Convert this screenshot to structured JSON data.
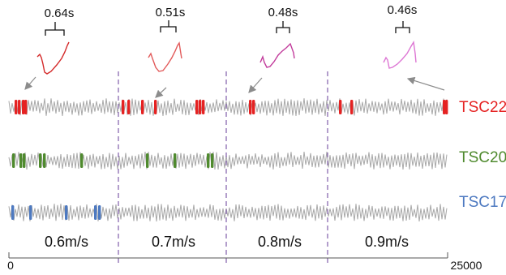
{
  "segments": [
    {
      "duration": "0.64s",
      "speed": "0.6m/s",
      "spike_color": "#d42a2a"
    },
    {
      "duration": "0.51s",
      "speed": "0.7m/s",
      "spike_color": "#e25a5a"
    },
    {
      "duration": "0.48s",
      "speed": "0.8m/s",
      "spike_color": "#c23c9c"
    },
    {
      "duration": "0.46s",
      "speed": "0.9m/s",
      "spike_color": "#dd77d4"
    }
  ],
  "traces": [
    {
      "label": "TSC22",
      "color": "#e52222"
    },
    {
      "label": "TSC20",
      "color": "#4f8a2e"
    },
    {
      "label": "TSC17",
      "color": "#4d79c0"
    }
  ],
  "axis": {
    "start_label": "0",
    "end_label": "25000"
  },
  "colors": {
    "trace_gray": "#a8a8a8",
    "divider": "#8a6ab0",
    "arrow": "#8c8c8c"
  }
}
